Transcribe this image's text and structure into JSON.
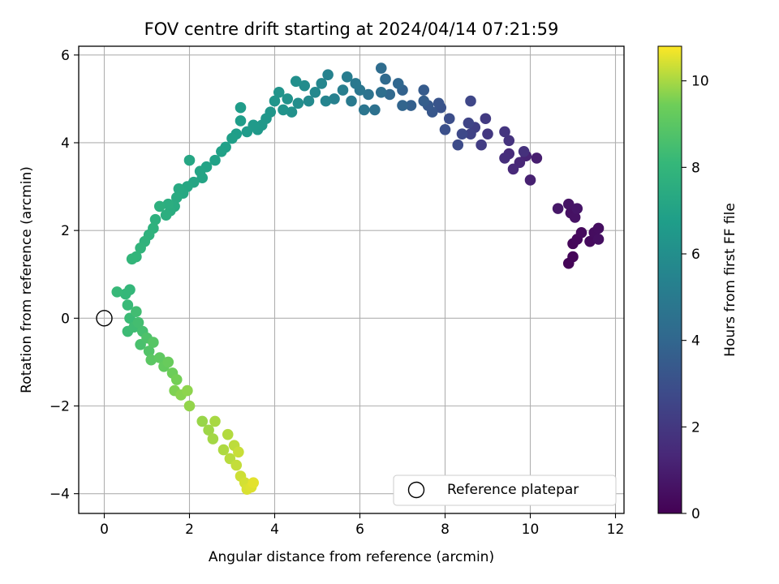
{
  "chart_data": {
    "type": "scatter",
    "title": "FOV centre drift starting at 2024/04/14 07:21:59",
    "xlabel": "Angular distance from reference (arcmin)",
    "ylabel": "Rotation from reference (arcmin)",
    "xlim": [
      -0.6,
      12.2
    ],
    "ylim": [
      -4.45,
      6.2
    ],
    "xticks": [
      0,
      2,
      4,
      6,
      8,
      10,
      12
    ],
    "yticks": [
      -4,
      -2,
      0,
      2,
      4,
      6
    ],
    "grid": true,
    "legend": {
      "position": "lower-right",
      "entries": [
        "Reference platepar"
      ]
    },
    "reference_point": {
      "x": 0,
      "y": 0,
      "label": "Reference platepar"
    },
    "colorbar": {
      "label": "Hours from first FF file",
      "colormap": "viridis",
      "range": [
        0,
        10.8
      ],
      "ticks": [
        0,
        2,
        4,
        6,
        8,
        10
      ]
    },
    "points": [
      [
        10.9,
        1.25,
        0.1
      ],
      [
        11.0,
        1.4,
        0.15
      ],
      [
        11.0,
        1.7,
        0.2
      ],
      [
        11.1,
        1.8,
        0.25
      ],
      [
        11.2,
        1.95,
        0.3
      ],
      [
        11.4,
        1.75,
        0.35
      ],
      [
        11.5,
        1.95,
        0.4
      ],
      [
        11.6,
        2.05,
        0.45
      ],
      [
        11.6,
        1.8,
        0.5
      ],
      [
        10.95,
        2.4,
        0.55
      ],
      [
        11.05,
        2.3,
        0.6
      ],
      [
        10.9,
        2.6,
        0.65
      ],
      [
        11.1,
        2.5,
        0.7
      ],
      [
        10.65,
        2.5,
        0.75
      ],
      [
        10.15,
        3.65,
        1.0
      ],
      [
        10.0,
        3.15,
        1.1
      ],
      [
        9.9,
        3.7,
        1.2
      ],
      [
        9.75,
        3.55,
        1.3
      ],
      [
        9.6,
        3.4,
        1.4
      ],
      [
        9.5,
        3.75,
        1.5
      ],
      [
        9.4,
        3.65,
        1.6
      ],
      [
        9.85,
        3.8,
        1.7
      ],
      [
        9.5,
        4.05,
        1.8
      ],
      [
        9.4,
        4.25,
        1.9
      ],
      [
        9.0,
        4.2,
        2.0
      ],
      [
        8.95,
        4.55,
        2.1
      ],
      [
        8.85,
        3.95,
        2.2
      ],
      [
        8.7,
        4.35,
        2.3
      ],
      [
        8.6,
        4.2,
        2.4
      ],
      [
        8.55,
        4.45,
        2.5
      ],
      [
        8.6,
        4.95,
        2.6
      ],
      [
        8.4,
        4.2,
        2.7
      ],
      [
        8.3,
        3.95,
        2.8
      ],
      [
        8.1,
        4.55,
        2.9
      ],
      [
        8.0,
        4.3,
        3.0
      ],
      [
        7.9,
        4.8,
        3.1
      ],
      [
        7.85,
        4.9,
        3.2
      ],
      [
        7.7,
        4.7,
        3.3
      ],
      [
        7.6,
        4.85,
        3.4
      ],
      [
        7.5,
        5.2,
        3.5
      ],
      [
        7.5,
        4.95,
        3.6
      ],
      [
        7.2,
        4.85,
        3.7
      ],
      [
        7.0,
        5.2,
        3.8
      ],
      [
        7.0,
        4.85,
        3.9
      ],
      [
        6.9,
        5.35,
        4.0
      ],
      [
        6.7,
        5.1,
        4.1
      ],
      [
        6.6,
        5.45,
        4.2
      ],
      [
        6.5,
        5.7,
        4.3
      ],
      [
        6.5,
        5.15,
        4.4
      ],
      [
        6.35,
        4.75,
        4.5
      ],
      [
        6.2,
        5.1,
        4.6
      ],
      [
        6.1,
        4.75,
        4.7
      ],
      [
        6.0,
        5.2,
        4.8
      ],
      [
        5.9,
        5.35,
        4.9
      ],
      [
        5.8,
        4.95,
        5.0
      ],
      [
        5.7,
        5.5,
        5.1
      ],
      [
        5.6,
        5.2,
        5.2
      ],
      [
        5.4,
        5.0,
        5.3
      ],
      [
        5.25,
        5.55,
        5.4
      ],
      [
        5.2,
        4.95,
        5.5
      ],
      [
        5.1,
        5.35,
        5.6
      ],
      [
        4.95,
        5.15,
        5.7
      ],
      [
        4.8,
        4.95,
        5.8
      ],
      [
        4.7,
        5.3,
        5.9
      ],
      [
        4.55,
        4.9,
        6.0
      ],
      [
        4.5,
        5.4,
        6.05
      ],
      [
        4.4,
        4.7,
        6.1
      ],
      [
        4.3,
        5.0,
        6.15
      ],
      [
        4.2,
        4.75,
        6.2
      ],
      [
        4.1,
        5.15,
        6.25
      ],
      [
        4.0,
        4.95,
        6.3
      ],
      [
        3.9,
        4.7,
        6.35
      ],
      [
        3.8,
        4.55,
        6.4
      ],
      [
        3.7,
        4.4,
        6.45
      ],
      [
        3.6,
        4.3,
        6.5
      ],
      [
        3.5,
        4.4,
        6.55
      ],
      [
        3.35,
        4.25,
        6.6
      ],
      [
        3.2,
        4.8,
        6.65
      ],
      [
        3.2,
        4.5,
        6.7
      ],
      [
        3.1,
        4.2,
        6.75
      ],
      [
        3.0,
        4.1,
        6.8
      ],
      [
        2.85,
        3.9,
        6.85
      ],
      [
        2.75,
        3.8,
        6.9
      ],
      [
        2.6,
        3.6,
        6.95
      ],
      [
        2.4,
        3.45,
        7.0
      ],
      [
        2.3,
        3.2,
        7.05
      ],
      [
        2.25,
        3.35,
        7.1
      ],
      [
        2.1,
        3.1,
        7.15
      ],
      [
        2.0,
        3.6,
        7.2
      ],
      [
        1.95,
        3.0,
        7.25
      ],
      [
        1.85,
        2.85,
        7.3
      ],
      [
        1.75,
        2.95,
        7.35
      ],
      [
        1.7,
        2.75,
        7.4
      ],
      [
        1.65,
        2.55,
        7.45
      ],
      [
        1.55,
        2.45,
        7.5
      ],
      [
        1.5,
        2.6,
        7.55
      ],
      [
        1.45,
        2.35,
        7.6
      ],
      [
        1.3,
        2.55,
        7.65
      ],
      [
        1.2,
        2.25,
        7.7
      ],
      [
        1.15,
        2.05,
        7.75
      ],
      [
        1.05,
        1.9,
        7.8
      ],
      [
        0.95,
        1.75,
        7.85
      ],
      [
        0.85,
        1.6,
        7.9
      ],
      [
        0.75,
        1.4,
        7.95
      ],
      [
        0.65,
        1.35,
        8.0
      ],
      [
        0.6,
        0.65,
        8.05
      ],
      [
        0.5,
        0.55,
        8.1
      ],
      [
        0.3,
        0.6,
        8.15
      ],
      [
        0.55,
        0.3,
        8.2
      ],
      [
        0.6,
        0.0,
        8.25
      ],
      [
        0.55,
        -0.3,
        8.3
      ],
      [
        0.7,
        -0.2,
        8.35
      ],
      [
        0.75,
        0.15,
        8.4
      ],
      [
        0.8,
        -0.1,
        8.45
      ],
      [
        0.9,
        -0.3,
        8.5
      ],
      [
        0.85,
        -0.6,
        8.6
      ],
      [
        1.0,
        -0.45,
        8.7
      ],
      [
        1.05,
        -0.75,
        8.8
      ],
      [
        1.15,
        -0.55,
        8.9
      ],
      [
        1.1,
        -0.95,
        9.0
      ],
      [
        1.3,
        -0.9,
        9.1
      ],
      [
        1.4,
        -1.1,
        9.2
      ],
      [
        1.5,
        -1.0,
        9.3
      ],
      [
        1.6,
        -1.25,
        9.4
      ],
      [
        1.7,
        -1.4,
        9.5
      ],
      [
        1.65,
        -1.65,
        9.6
      ],
      [
        1.8,
        -1.75,
        9.7
      ],
      [
        1.95,
        -1.65,
        9.75
      ],
      [
        2.0,
        -2.0,
        9.8
      ],
      [
        2.3,
        -2.35,
        9.85
      ],
      [
        2.45,
        -2.55,
        9.9
      ],
      [
        2.55,
        -2.75,
        9.95
      ],
      [
        2.6,
        -2.35,
        10.0
      ],
      [
        2.8,
        -3.0,
        10.05
      ],
      [
        2.9,
        -2.65,
        10.1
      ],
      [
        2.95,
        -3.2,
        10.15
      ],
      [
        3.05,
        -2.9,
        10.2
      ],
      [
        3.1,
        -3.35,
        10.25
      ],
      [
        3.15,
        -3.05,
        10.3
      ],
      [
        3.2,
        -3.6,
        10.35
      ],
      [
        3.3,
        -3.75,
        10.4
      ],
      [
        3.35,
        -3.9,
        10.45
      ],
      [
        3.45,
        -3.85,
        10.5
      ],
      [
        3.5,
        -3.75,
        10.55
      ]
    ]
  }
}
